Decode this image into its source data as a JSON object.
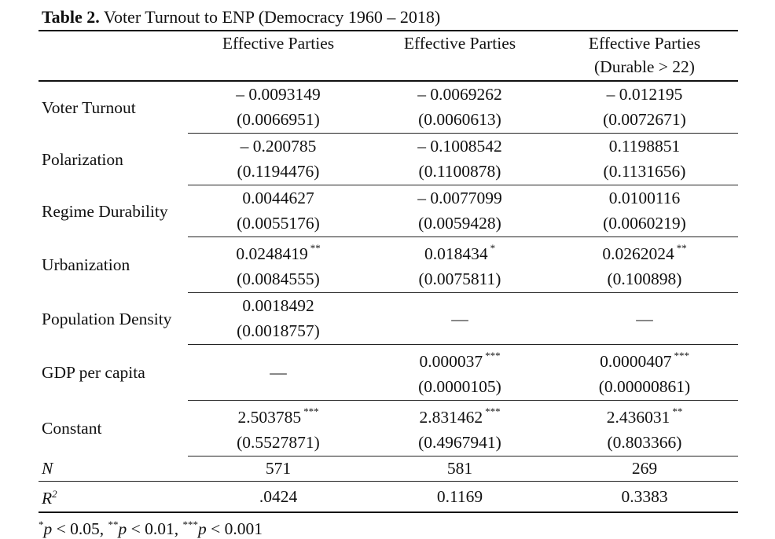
{
  "caption": {
    "label": "Table 2.",
    "text": "Voter Turnout to ENP (Democracy 1960 – 2018)"
  },
  "columns": [
    {
      "line1": "Effective Parties",
      "line2": ""
    },
    {
      "line1": "Effective Parties",
      "line2": ""
    },
    {
      "line1": "Effective Parties",
      "line2": "(Durable > 22)"
    }
  ],
  "rows": [
    {
      "label": "Voter Turnout",
      "cells": [
        {
          "coef": "– 0.0093149",
          "stars": "",
          "se": "(0.0066951)"
        },
        {
          "coef": "– 0.0069262",
          "stars": "",
          "se": "(0.0060613)"
        },
        {
          "coef": "– 0.012195",
          "stars": "",
          "se": "(0.0072671)"
        }
      ]
    },
    {
      "label": "Polarization",
      "cells": [
        {
          "coef": "– 0.200785",
          "stars": "",
          "se": "(0.1194476)"
        },
        {
          "coef": "– 0.1008542",
          "stars": "",
          "se": "(0.1100878)"
        },
        {
          "coef": "0.1198851",
          "stars": "",
          "se": "(0.1131656)"
        }
      ]
    },
    {
      "label": "Regime Durability",
      "cells": [
        {
          "coef": "0.0044627",
          "stars": "",
          "se": "(0.0055176)"
        },
        {
          "coef": "– 0.0077099",
          "stars": "",
          "se": "(0.0059428)"
        },
        {
          "coef": "0.0100116",
          "stars": "",
          "se": "(0.0060219)"
        }
      ]
    },
    {
      "label": "Urbanization",
      "cells": [
        {
          "coef": "0.0248419",
          "stars": "**",
          "se": "(0.0084555)"
        },
        {
          "coef": "0.018434",
          "stars": "*",
          "se": "(0.0075811)"
        },
        {
          "coef": "0.0262024",
          "stars": "**",
          "se": "(0.100898)"
        }
      ]
    },
    {
      "label": "Population Density",
      "cells": [
        {
          "coef": "0.0018492",
          "stars": "",
          "se": "(0.0018757)"
        },
        {
          "dash": "—"
        },
        {
          "dash": "—"
        }
      ]
    },
    {
      "label": "GDP per capita",
      "cells": [
        {
          "dash": "—"
        },
        {
          "coef": "0.000037",
          "stars": "***",
          "se": "(0.0000105)"
        },
        {
          "coef": "0.0000407",
          "stars": "***",
          "se": "(0.00000861)"
        }
      ]
    },
    {
      "label": "Constant",
      "cells": [
        {
          "coef": "2.503785",
          "stars": "***",
          "se": "(0.5527871)"
        },
        {
          "coef": "2.831462",
          "stars": "***",
          "se": "(0.4967941)"
        },
        {
          "coef": "2.436031",
          "stars": "**",
          "se": "(0.803366)"
        }
      ]
    }
  ],
  "stats": [
    {
      "label": "N",
      "sup": "",
      "values": [
        "571",
        "581",
        "269"
      ]
    },
    {
      "label": "R",
      "sup": "2",
      "values": [
        ".0424",
        "0.1169",
        "0.3383"
      ]
    }
  ],
  "note": {
    "s1": "*",
    "t1": "p",
    "r1": " < 0.05, ",
    "s2": "**",
    "t2": "p",
    "r2": " < 0.01, ",
    "s3": "***",
    "t3": "p",
    "r3": " < 0.001"
  }
}
